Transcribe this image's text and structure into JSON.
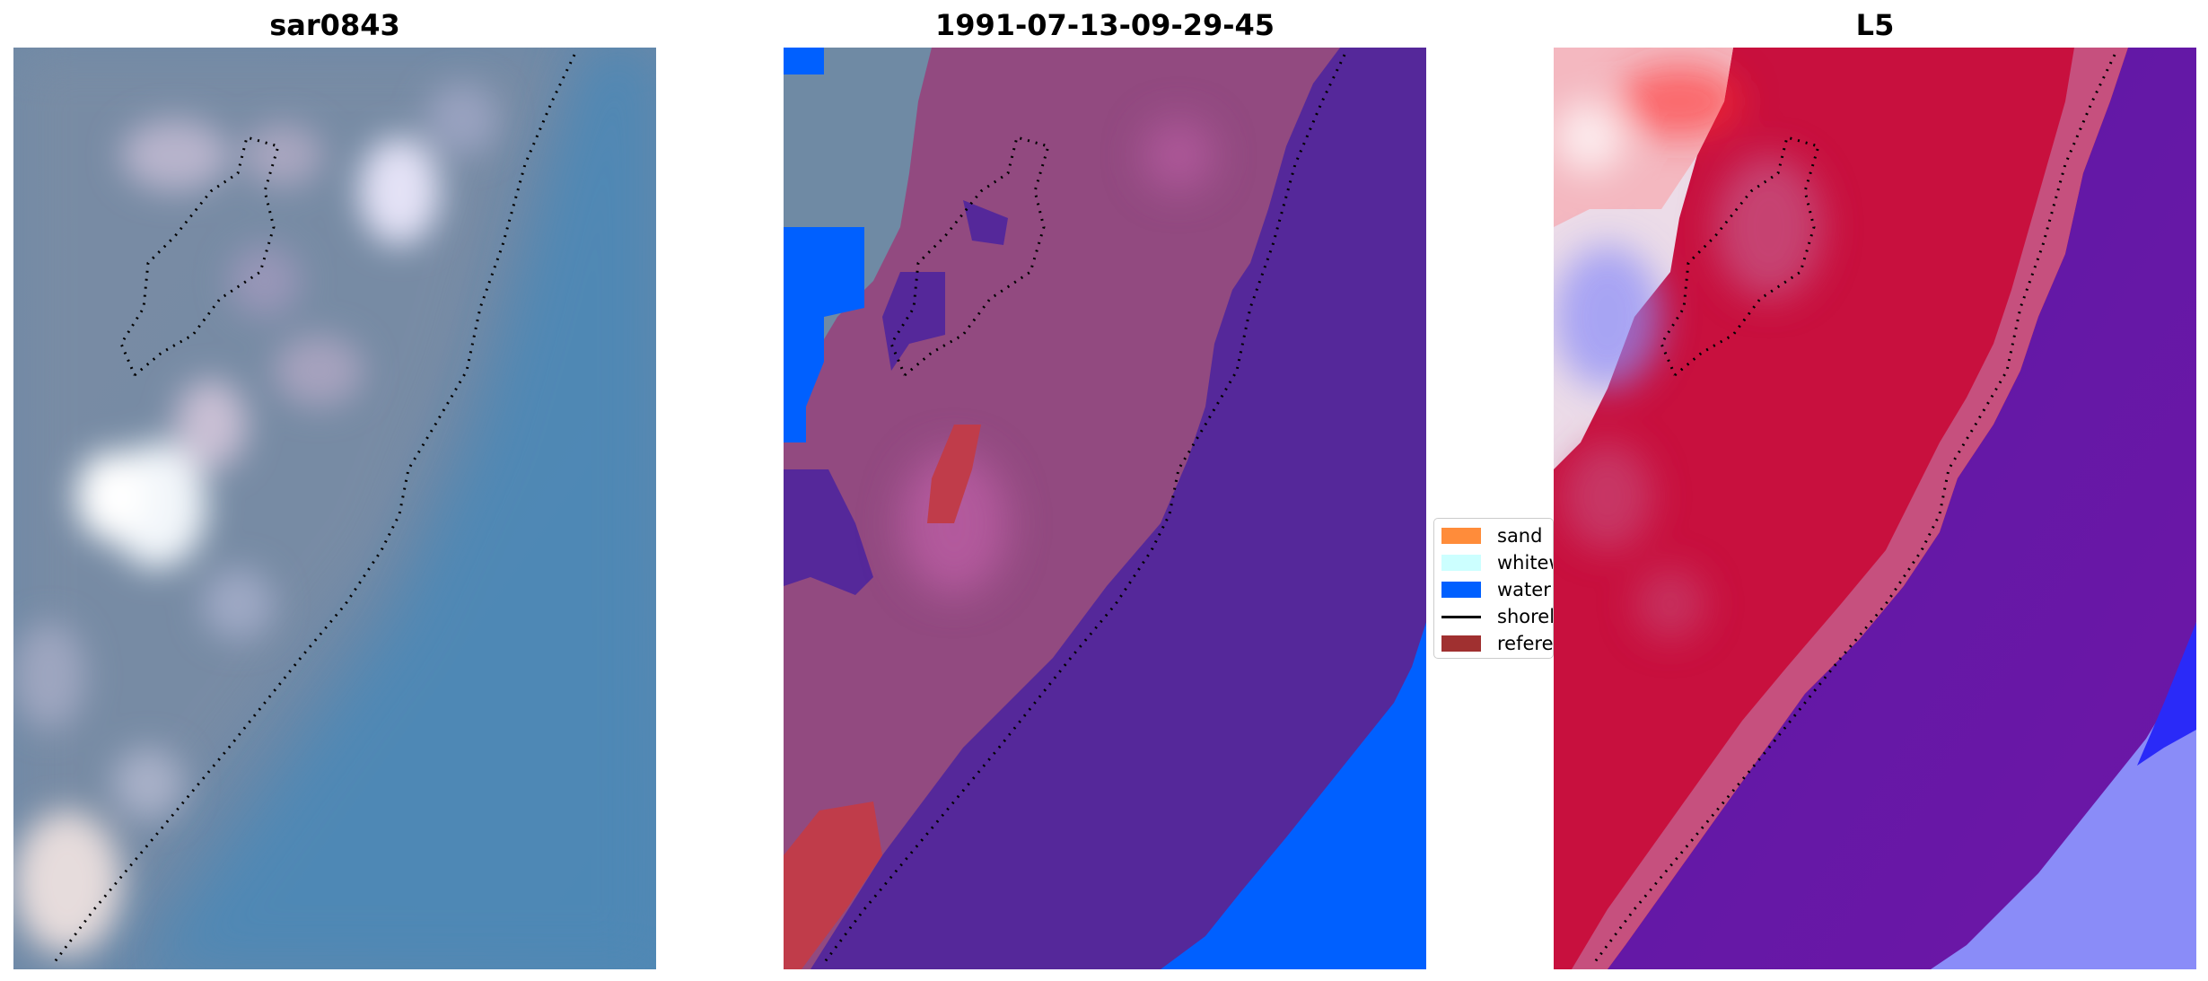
{
  "panels": [
    {
      "title": "sar0843",
      "colors": {
        "base": "#5f86a8",
        "light": "#d8d6e4",
        "water": "#4f88b8"
      }
    },
    {
      "title": "1991-07-13-09-29-45",
      "colors": {
        "base": "#9a4a84",
        "grey": "#6f8aa4",
        "dark": "#55289a",
        "water": "#0060ff",
        "red": "#c03c4a",
        "pink": "#c060a8"
      }
    },
    {
      "title": "L5",
      "colors": {
        "base": "#c8103e",
        "pink": "#c6507e",
        "purple": "#6e16a6",
        "dark": "#5a1aa6",
        "lightblue": "#8a8cf8",
        "blue": "#2a2af8",
        "white": "#f4eef4",
        "redbright": "#ff3030"
      }
    }
  ],
  "legend": {
    "items": [
      {
        "label": "sand",
        "color": "#ff8c3a",
        "kind": "patch"
      },
      {
        "label": "whitewater",
        "color": "#ccffff",
        "kind": "patch"
      },
      {
        "label": "water",
        "color": "#0060ff",
        "kind": "patch"
      },
      {
        "label": "shoreline",
        "color": "#000000",
        "kind": "line"
      },
      {
        "label": "reference",
        "color": "#a03030",
        "kind": "patch"
      }
    ]
  }
}
